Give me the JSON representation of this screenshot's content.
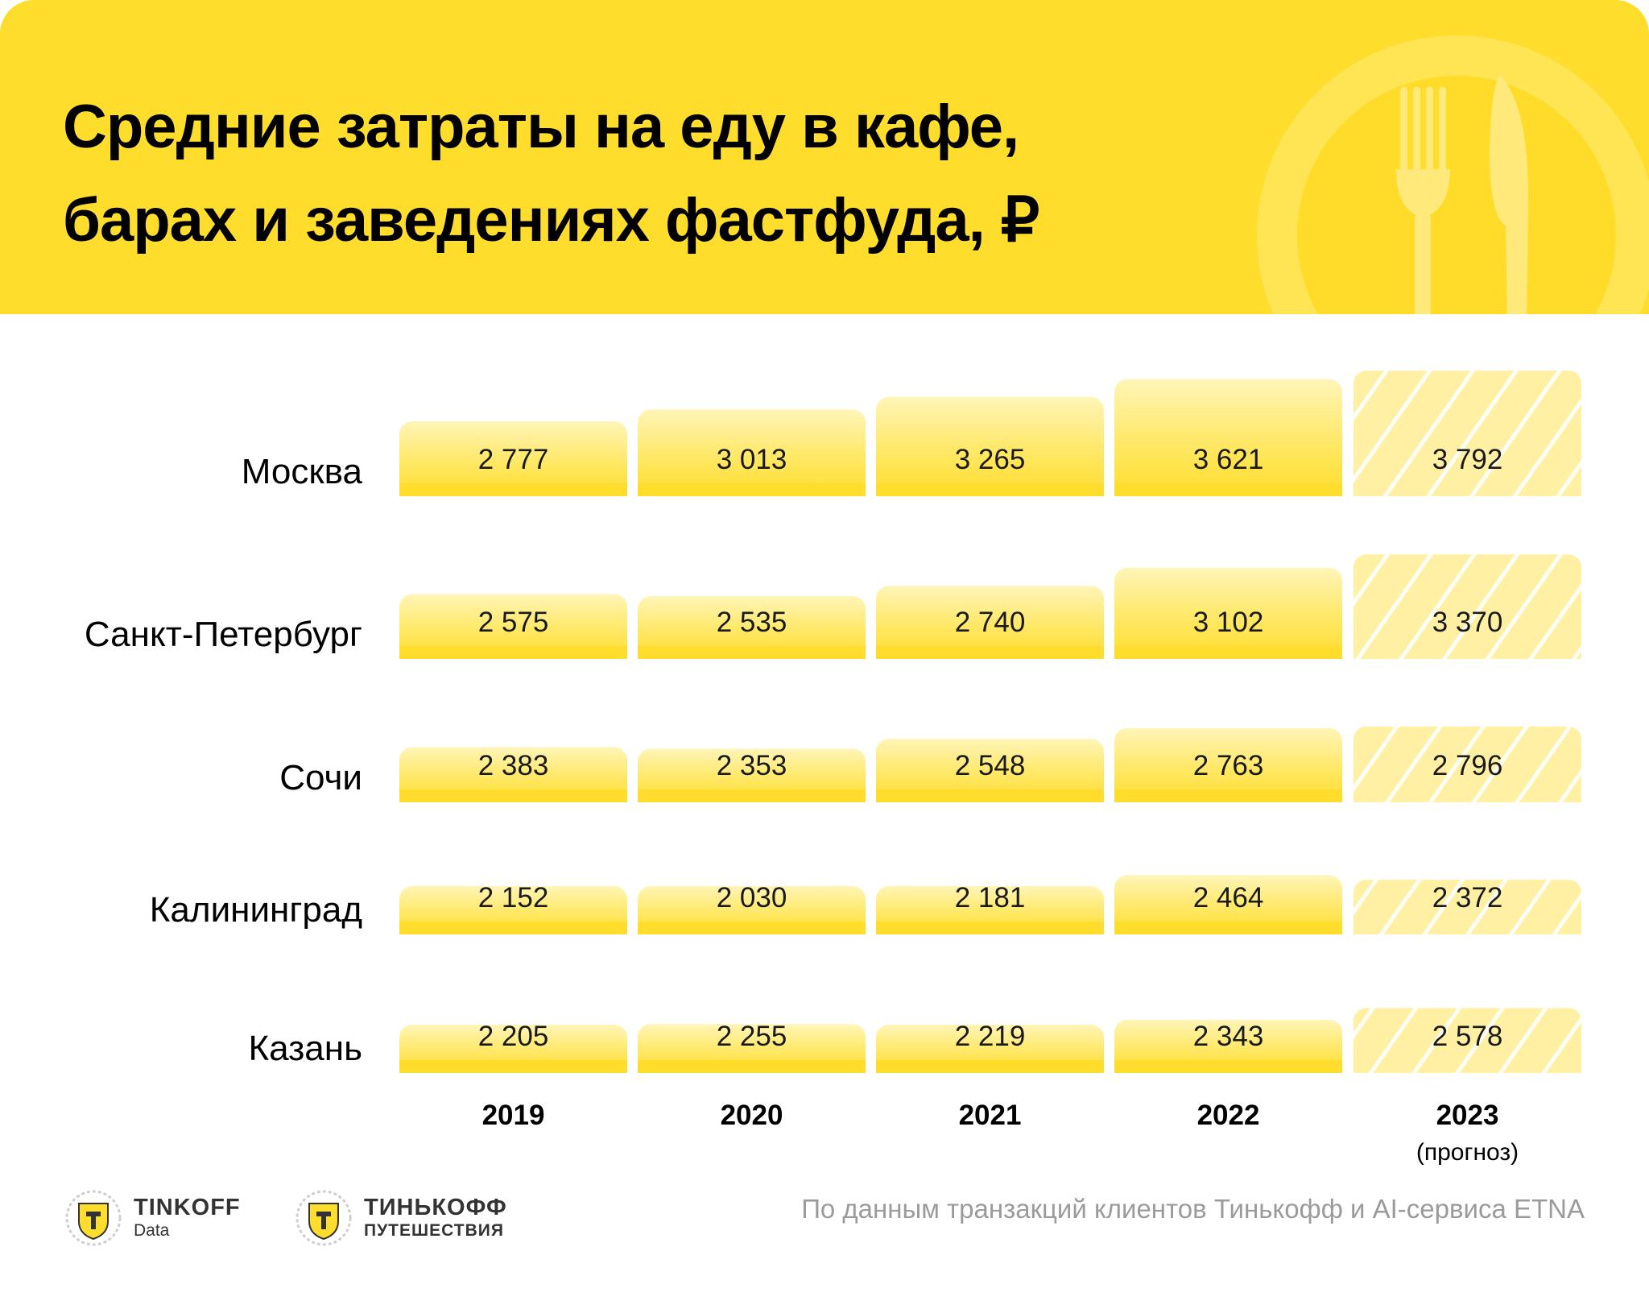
{
  "title_lines": [
    "Средние затраты на еду в кафе,",
    "барах и заведениях фастфуда, ₽"
  ],
  "source_note": "По данным транзакций клиентов Тинькофф и AI-сервиса ETNA",
  "brands": [
    {
      "name": "TINKOFF",
      "sub": "Data",
      "icon": "tinkoff-shield-logo"
    },
    {
      "name": "ТИНЬКОФФ",
      "sub": "ПУТЕШЕСТВИЯ",
      "icon": "tinkoff-shield-logo"
    }
  ],
  "decoration": {
    "icon": "plate-fork-knife-icon"
  },
  "colors": {
    "header_bg": "#ffdd2d",
    "bar_top": "#fff4b0",
    "bar_bottom": "#ffdd2d",
    "forecast_bar": "#fff0a3",
    "text": "#000000",
    "source_text": "#9b9b9b"
  },
  "chart_data": {
    "type": "bar",
    "layout_note": "",
    "years": [
      "2019",
      "2020",
      "2021",
      "2022",
      "2023"
    ],
    "year_notes": [
      "",
      "",
      "",
      "",
      "(прогноз)"
    ],
    "forecast_index": 4,
    "series": [
      {
        "name": "Москва",
        "values": [
          2777,
          3013,
          3265,
          3621,
          3792
        ],
        "labels": [
          "2 777",
          "3 013",
          "3 265",
          "3 621",
          "3 792"
        ]
      },
      {
        "name": "Санкт-Петербург",
        "values": [
          2575,
          2535,
          2740,
          3102,
          3370
        ],
        "labels": [
          "2 575",
          "2 535",
          "2 740",
          "3 102",
          "3 370"
        ]
      },
      {
        "name": "Сочи",
        "values": [
          2383,
          2353,
          2548,
          2763,
          2796
        ],
        "labels": [
          "2 383",
          "2 353",
          "2 548",
          "2 763",
          "2 796"
        ]
      },
      {
        "name": "Калининград",
        "values": [
          2152,
          2030,
          2181,
          2464,
          2372
        ],
        "labels": [
          "2 152",
          "2 030",
          "2 181",
          "2 464",
          "2 372"
        ]
      },
      {
        "name": "Казань",
        "values": [
          2205,
          2255,
          2219,
          2343,
          2578
        ],
        "labels": [
          "2 205",
          "2 255",
          "2 219",
          "2 343",
          "2 578"
        ]
      }
    ],
    "unit": "₽"
  }
}
